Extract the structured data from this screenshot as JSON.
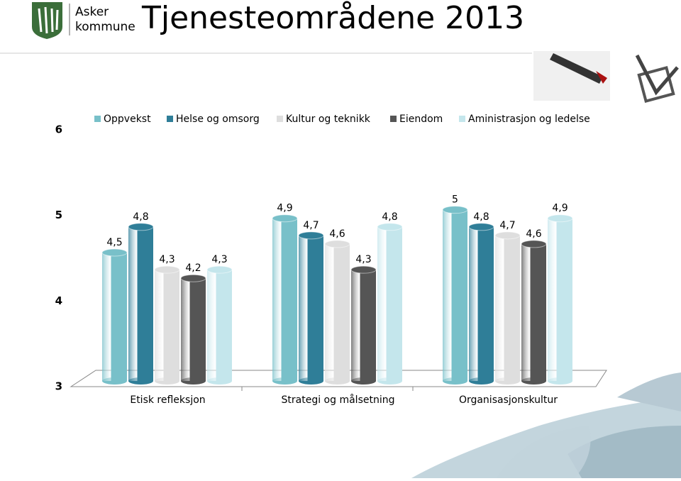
{
  "header": {
    "title": "Tjenesteområdene 2013",
    "logo_line1": "Asker",
    "logo_line2": "kommune"
  },
  "chart_data": {
    "type": "bar",
    "categories": [
      "Etisk refleksjon",
      "Strategi og målsetning",
      "Organisasjonskultur"
    ],
    "series": [
      {
        "name": "Oppvekst",
        "color": "#78c0c9",
        "values": [
          4.5,
          4.9,
          5
        ],
        "value_labels": [
          "4,5",
          "4,9",
          "5"
        ]
      },
      {
        "name": "Helse og omsorg",
        "color": "#2f7e98",
        "values": [
          4.8,
          4.7,
          4.8
        ],
        "value_labels": [
          "4,8",
          "4,7",
          "4,8"
        ]
      },
      {
        "name": "Kultur og teknikk",
        "color": "#dedede",
        "values": [
          4.3,
          4.6,
          4.7
        ],
        "value_labels": [
          "4,3",
          "4,6",
          "4,7"
        ]
      },
      {
        "name": "Eiendom",
        "color": "#555555",
        "values": [
          4.2,
          4.3,
          4.6
        ],
        "value_labels": [
          "4,2",
          "4,3",
          "4,6"
        ]
      },
      {
        "name": "Aministrasjon og ledelse",
        "color": "#c4e6ec",
        "values": [
          4.3,
          4.8,
          4.9
        ],
        "value_labels": [
          "4,3",
          "4,8",
          "4,9"
        ]
      }
    ],
    "ylim": [
      3,
      6
    ],
    "yticks": [
      3,
      4,
      5,
      6
    ]
  }
}
